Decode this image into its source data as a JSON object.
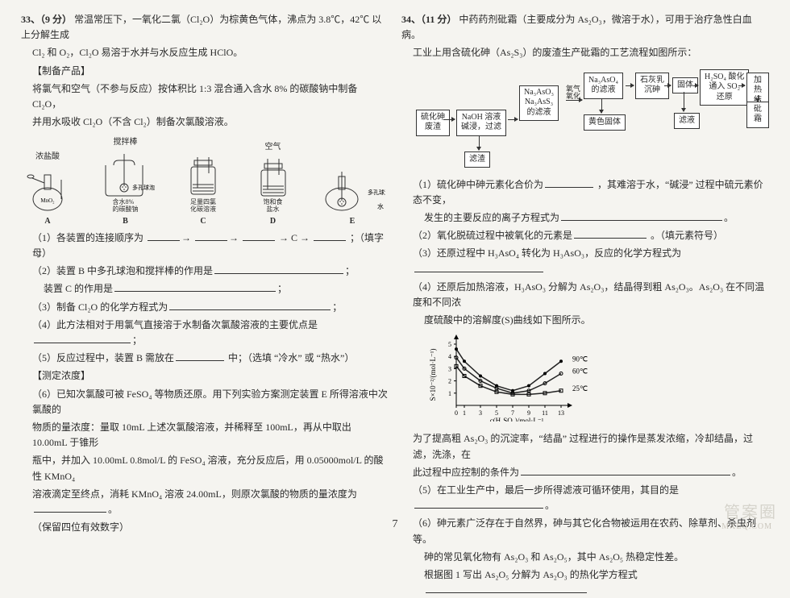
{
  "page_number": "7",
  "watermark_main": "管案圈",
  "watermark_sub": "MXEQ.COM",
  "left": {
    "q_num": "33、（9 分）",
    "intro1": "常温常压下，一氧化二氯（Cl₂O）为棕黄色气体，沸点为 3.8℃，42℃ 以上分解生成",
    "intro2": "Cl₂ 和 O₂，Cl₂O 易溶于水并与水反应生成 HClO。",
    "section_make": "【制备产品】",
    "make1": "将氯气和空气（不参与反应）按体积比 1:3 混合通入含水 8% 的碳酸钠中制备 Cl₂O，",
    "make2": "并用水吸收 Cl₂O（不含 Cl₂）制备次氯酸溶液。",
    "apparatus_top_labels": {
      "A": "浓盐酸",
      "B": "搅拌棒",
      "D": "空气"
    },
    "apparatus_sub": {
      "A": "MnO₂",
      "B_side": "多孔球泡",
      "B_under": "含水8%\n的碳酸钠",
      "C": "足量四氯\n化碳溶液",
      "D": "饱和食\n盐水",
      "E_side": "多孔球泡",
      "E_end": "水"
    },
    "apparatus_letters": [
      "A",
      "B",
      "C",
      "D",
      "E"
    ],
    "q1": "（1）各装置的连接顺序为",
    "q1_seq_mid": "→ C →",
    "q1_tail": "；（填字母）",
    "q2a": "（2）装置 B 中多孔球泡和搅拌棒的作用是",
    "q2b": "装置 C 的作用是",
    "q3": "（3）制备 Cl₂O 的化学方程式为",
    "q4": "（4）此方法相对于用氯气直接溶于水制备次氯酸溶液的主要优点是",
    "q5": "（5）反应过程中，装置 B 需放在",
    "q5_tail": "中；（选填 “冷水” 或 “热水”）",
    "section_measure": "【测定浓度】",
    "q6a": "（6）已知次氯酸可被 FeSO₄ 等物质还原。用下列实验方案测定装置 E 所得溶液中次氯酸的",
    "q6b": "物质的量浓度：量取 10mL 上述次氯酸溶液，并稀释至 100mL，再从中取出 10.00mL 于锥形",
    "q6c": "瓶中，并加入 10.00mL 0.8mol/L 的 FeSO₄ 溶液，充分反应后，用 0.05000mol/L 的酸性 KMnO₄",
    "q6d": "溶液滴定至终点，消耗 KMnO₄ 溶液 24.00mL，则原次氯酸的物质的量浓度为",
    "q6e": "（保留四位有效数字）"
  },
  "right": {
    "q_num": "34、（11 分）",
    "intro1": "中药药剂砒霜（主要成分为 As₂O₃，微溶于水），可用于治疗急性白血病。",
    "intro2": "工业上用含硫化砷（As₂S₃）的废渣生产砒霜的工艺流程如图所示：",
    "flow": {
      "n1": "硫化砷\n废渣",
      "n2": "NaOH 溶液\n碱浸，过滤",
      "n3": "Na₃AsO₃\nNa₃AsS₃\n的滤液",
      "n4": "Na₃AsO₄\n的滤液",
      "n5": "石灰乳\n沉砷",
      "n6": "固体",
      "n7": "H₂SO₄ 酸化\n通入 SO₂\n还原",
      "n8": "加热\n结晶",
      "n9": "砒霜",
      "side1": "滤渣",
      "side2": "黄色固体",
      "side3": "滤液",
      "arrow_lbl1": "氧气\n氧化"
    },
    "q1a": "（1）硫化砷中砷元素化合价为",
    "q1b": "，其难溶于水，“碱浸” 过程中硫元素价态不变，",
    "q1c": "发生的主要反应的离子方程式为",
    "q2": "（2）氧化脱硫过程中被氧化的元素是",
    "q2_tail": "。（填元素符号）",
    "q3": "（3）还原过程中 H₃AsO₄ 转化为 H₃AsO₃，反应的化学方程式为",
    "q4a": "（4）还原后加热溶液，H₃AsO₃ 分解为 As₂O₃，结晶得到粗 As₂O₃。As₂O₃ 在不同温度和不同浓",
    "q4b": "度硫酸中的溶解度(S)曲线如下图所示。",
    "graph": {
      "ylabel": "S×10⁻²/(mol·L⁻¹)",
      "xlabel": "c(H₂SO₄)/mol·L⁻¹",
      "yticks": [
        "1",
        "2",
        "3",
        "4",
        "5"
      ],
      "xticks": [
        "0",
        "1",
        "3",
        "5",
        "7",
        "9",
        "11",
        "13"
      ],
      "series": [
        {
          "label": "90℃",
          "color": "#222",
          "y": [
            4.6,
            3.6,
            2.4,
            1.6,
            1.2,
            1.6,
            2.6,
            3.6
          ]
        },
        {
          "label": "60℃",
          "color": "#222",
          "y": [
            3.9,
            3.0,
            2.0,
            1.4,
            1.0,
            1.2,
            1.8,
            2.6
          ]
        },
        {
          "label": "25℃",
          "color": "#222",
          "y": [
            3.2,
            2.4,
            1.6,
            1.1,
            0.9,
            0.9,
            1.0,
            1.2
          ]
        }
      ],
      "bg": "#fff",
      "axis_color": "#000",
      "line_w": 1.5
    },
    "q4c": "为了提高粗 As₂O₃ 的沉淀率，“结晶” 过程进行的操作是蒸发浓缩，冷却结晶，过滤，洗涤，在",
    "q4d": "此过程中应控制的条件为",
    "q5": "（5）在工业生产中，最后一步所得滤液可循环使用，其目的是",
    "q6a": "（6）砷元素广泛存在于自然界，砷与其它化合物被运用在农药、除草剂、杀虫剂等。",
    "q6b": "砷的常见氧化物有 As₂O₃ 和 As₂O₅，其中 As₂O₅ 热稳定性差。",
    "q6c": "根据图 1 写出 As₂O₅ 分解为 As₂O₃ 的热化学方程式"
  }
}
